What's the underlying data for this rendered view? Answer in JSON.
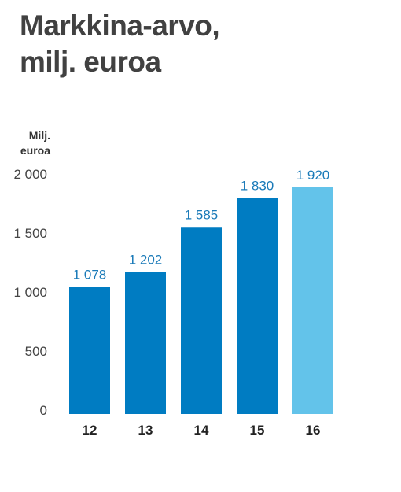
{
  "title": {
    "line1": "Markkina-arvo,",
    "line2": "milj. euroa"
  },
  "unit_label": {
    "line1": "Milj.",
    "line2": "euroa"
  },
  "colors": {
    "bar": "#007cc2",
    "bar_highlight": "#63c3ea",
    "data_label": "#1a7ab8"
  },
  "chart_data": {
    "type": "bar",
    "categories": [
      "12",
      "13",
      "14",
      "15",
      "16"
    ],
    "values": [
      1078,
      1202,
      1585,
      1830,
      1920
    ],
    "value_labels": [
      "1 078",
      "1 202",
      "1 585",
      "1 830",
      "1 920"
    ],
    "highlight_index": 4,
    "ylim": [
      0,
      2000
    ],
    "yticks": [
      0,
      500,
      1000,
      1500,
      2000
    ],
    "ytick_labels": [
      "0",
      "500",
      "1 000",
      "1 500",
      "2 000"
    ],
    "grid": false
  }
}
